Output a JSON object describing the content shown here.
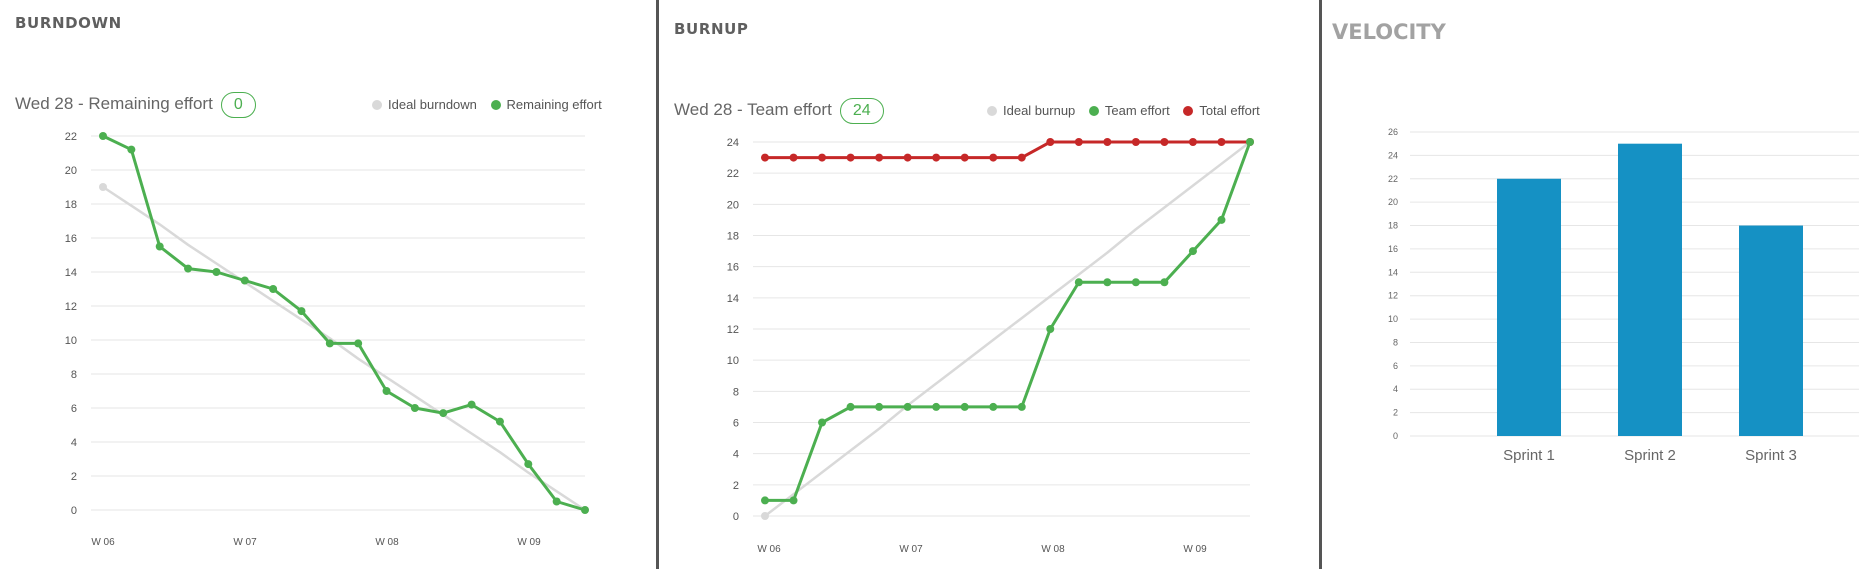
{
  "panels": {
    "burndown": {
      "title": "BURNDOWN",
      "subtitle": "Wed 28 - Remaining effort",
      "badge": "0",
      "legend": [
        {
          "label": "Ideal burndown",
          "color": "#d9d9d9"
        },
        {
          "label": "Remaining effort",
          "color": "#4caf50"
        }
      ]
    },
    "burnup": {
      "title": "BURNUP",
      "subtitle": "Wed 28 - Team effort",
      "badge": "24",
      "legend": [
        {
          "label": "Ideal burnup",
          "color": "#d9d9d9"
        },
        {
          "label": "Team effort",
          "color": "#4caf50"
        },
        {
          "label": "Total effort",
          "color": "#c62828"
        }
      ]
    },
    "velocity": {
      "title": "VELOCITY"
    }
  },
  "chart_data": [
    {
      "type": "line",
      "xticks": [
        "W 06",
        "W 07",
        "W 08",
        "W 09"
      ],
      "ylim": [
        0,
        22
      ],
      "yticks": [
        0,
        2,
        4,
        6,
        8,
        10,
        12,
        14,
        16,
        18,
        20,
        22
      ],
      "x": [
        0,
        1,
        2,
        3,
        4,
        5,
        6,
        7,
        8,
        9,
        10,
        11,
        12,
        13,
        14,
        15,
        16,
        17
      ],
      "series": [
        {
          "name": "Ideal burndown",
          "color": "#d9d9d9",
          "markers": "first",
          "values": [
            19,
            17.9,
            16.8,
            15.6,
            14.5,
            13.4,
            12.3,
            11.2,
            10.1,
            8.9,
            7.8,
            6.7,
            5.6,
            4.5,
            3.4,
            2.2,
            1.1,
            0
          ]
        },
        {
          "name": "Remaining effort",
          "color": "#4caf50",
          "markers": "all",
          "values": [
            22,
            21.2,
            15.5,
            14.2,
            14,
            13.5,
            13,
            11.7,
            9.8,
            9.8,
            7,
            6,
            5.7,
            6.2,
            5.2,
            2.7,
            0.5,
            0
          ]
        }
      ]
    },
    {
      "type": "line",
      "xticks": [
        "W 06",
        "W 07",
        "W 08",
        "W 09"
      ],
      "ylim": [
        0,
        24
      ],
      "yticks": [
        0,
        2,
        4,
        6,
        8,
        10,
        12,
        14,
        16,
        18,
        20,
        22,
        24
      ],
      "x": [
        0,
        1,
        2,
        3,
        4,
        5,
        6,
        7,
        8,
        9,
        10,
        11,
        12,
        13,
        14,
        15,
        16,
        17
      ],
      "series": [
        {
          "name": "Ideal burnup",
          "color": "#d9d9d9",
          "markers": "first",
          "values": [
            0,
            1.4,
            2.8,
            4.2,
            5.6,
            7.1,
            8.5,
            9.9,
            11.3,
            12.7,
            14.1,
            15.5,
            16.9,
            18.4,
            19.8,
            21.2,
            22.6,
            24
          ]
        },
        {
          "name": "Total effort",
          "color": "#c62828",
          "markers": "all",
          "values": [
            23,
            23,
            23,
            23,
            23,
            23,
            23,
            23,
            23,
            23,
            24,
            24,
            24,
            24,
            24,
            24,
            24,
            24
          ]
        },
        {
          "name": "Team effort",
          "color": "#4caf50",
          "markers": "all",
          "values": [
            1,
            1,
            6,
            7,
            7,
            7,
            7,
            7,
            7,
            7,
            12,
            15,
            15,
            15,
            15,
            17,
            19,
            24
          ]
        }
      ]
    },
    {
      "type": "bar",
      "categories": [
        "Sprint 1",
        "Sprint 2",
        "Sprint 3"
      ],
      "values": [
        22,
        25,
        18
      ],
      "color": "#1591c4",
      "ylim": [
        0,
        26
      ],
      "yticks": [
        0,
        2,
        4,
        6,
        8,
        10,
        12,
        14,
        16,
        18,
        20,
        22,
        24,
        26
      ]
    }
  ]
}
